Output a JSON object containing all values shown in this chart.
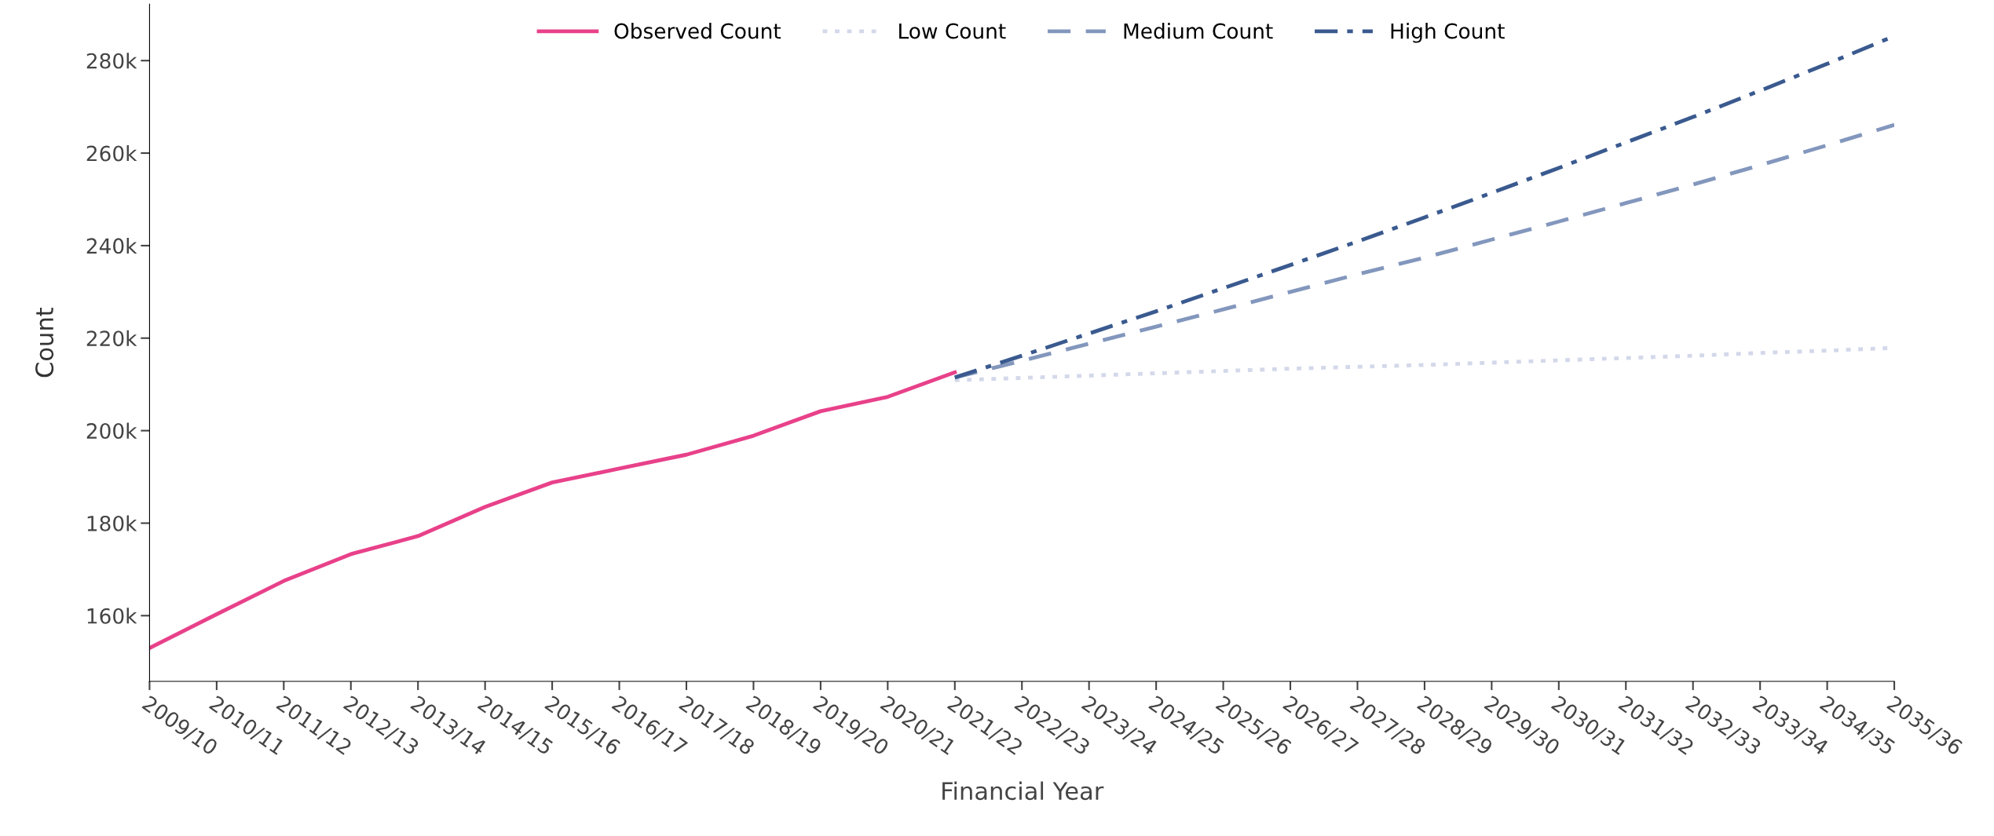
{
  "chart_data": {
    "type": "line",
    "xlabel": "Financial Year",
    "ylabel": "Count",
    "categories": [
      "2009/10",
      "2010/11",
      "2011/12",
      "2012/13",
      "2013/14",
      "2014/15",
      "2015/16",
      "2016/17",
      "2017/18",
      "2018/19",
      "2019/20",
      "2020/21",
      "2021/22",
      "2022/23",
      "2023/24",
      "2024/25",
      "2025/26",
      "2026/27",
      "2027/28",
      "2028/29",
      "2029/30",
      "2030/31",
      "2031/32",
      "2032/33",
      "2033/34",
      "2034/35",
      "2035/36"
    ],
    "series": [
      {
        "name": "Observed Count",
        "color": "#e8418a",
        "line_style": "solid",
        "values": [
          153000,
          160300,
          167500,
          173300,
          177200,
          183500,
          188800,
          191800,
          194800,
          198900,
          204200,
          207300,
          212600,
          null,
          null,
          null,
          null,
          null,
          null,
          null,
          null,
          null,
          null,
          null,
          null,
          null,
          null
        ]
      },
      {
        "name": "Low Count",
        "color": "#d3d8ea",
        "line_style": "dotted",
        "values": [
          null,
          null,
          null,
          null,
          null,
          null,
          null,
          null,
          null,
          null,
          null,
          null,
          210900,
          211400,
          211900,
          212400,
          212900,
          213400,
          213800,
          214200,
          214700,
          215200,
          215700,
          216200,
          216800,
          217300,
          217900
        ]
      },
      {
        "name": "Medium Count",
        "color": "#8397bd",
        "line_style": "dashed",
        "values": [
          null,
          null,
          null,
          null,
          null,
          null,
          null,
          null,
          null,
          null,
          null,
          null,
          211500,
          215100,
          218800,
          222500,
          226200,
          230000,
          233800,
          237400,
          241300,
          245200,
          249200,
          253200,
          257400,
          261700,
          266100
        ]
      },
      {
        "name": "High Count",
        "color": "#3a5a8f",
        "line_style": "dashdot",
        "values": [
          null,
          null,
          null,
          null,
          null,
          null,
          null,
          null,
          null,
          null,
          null,
          null,
          211500,
          216200,
          221000,
          225800,
          230800,
          235800,
          240900,
          246100,
          251400,
          256800,
          262300,
          267800,
          273500,
          279300,
          285300
        ]
      }
    ],
    "ylim": [
      145800,
      292200
    ],
    "yticks": [
      {
        "value": 160000,
        "label": "160k"
      },
      {
        "value": 180000,
        "label": "180k"
      },
      {
        "value": 200000,
        "label": "200k"
      },
      {
        "value": 220000,
        "label": "220k"
      },
      {
        "value": 240000,
        "label": "240k"
      },
      {
        "value": 260000,
        "label": "260k"
      },
      {
        "value": 280000,
        "label": "280k"
      }
    ],
    "grid": false,
    "legend": "top",
    "marker": "none"
  }
}
